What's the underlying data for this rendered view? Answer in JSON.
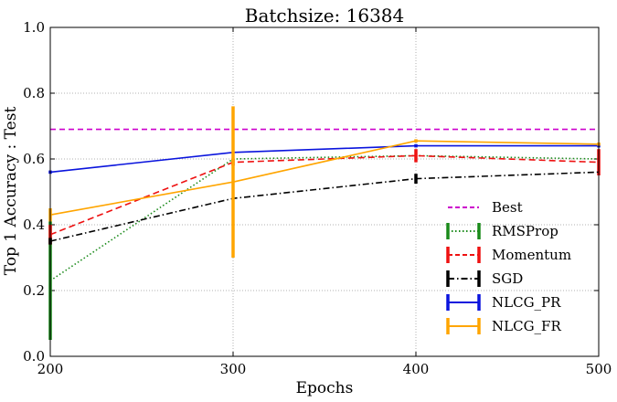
{
  "chart_data": {
    "type": "line",
    "title": "Batchsize: 16384",
    "xlabel": "Epochs",
    "ylabel": "Top 1 Accuracy : Test",
    "xlim": [
      200,
      500
    ],
    "ylim": [
      0.0,
      1.0
    ],
    "x_ticks": [
      "200",
      "300",
      "400",
      "500"
    ],
    "y_ticks": [
      "0.0",
      "0.2",
      "0.4",
      "0.6",
      "0.8",
      "1.0"
    ],
    "grid": true,
    "legend_position": "lower-right",
    "best": {
      "name": "Best",
      "value": 0.69,
      "color": "#cc00cc",
      "style": "dashed"
    },
    "series": [
      {
        "name": "RMSProp",
        "color": "#1a8a1a",
        "style": "dotted",
        "x": [
          200,
          300,
          400,
          500
        ],
        "y": [
          0.23,
          0.6,
          0.61,
          0.6
        ],
        "err": [
          0.18,
          0.0,
          0.0,
          0.0
        ]
      },
      {
        "name": "Momentum",
        "color": "#ee1111",
        "style": "dashed",
        "x": [
          200,
          300,
          400,
          500
        ],
        "y": [
          0.37,
          0.59,
          0.61,
          0.59
        ],
        "err": [
          0.03,
          0.01,
          0.02,
          0.04
        ]
      },
      {
        "name": "SGD",
        "color": "#000000",
        "style": "dashdot",
        "x": [
          200,
          300,
          400,
          500
        ],
        "y": [
          0.35,
          0.48,
          0.54,
          0.56
        ],
        "err": [
          0.01,
          0.0,
          0.015,
          0.0
        ]
      },
      {
        "name": "NLCG_PR",
        "color": "#0a14dd",
        "style": "solid",
        "x": [
          200,
          300,
          400,
          500
        ],
        "y": [
          0.56,
          0.62,
          0.64,
          0.64
        ],
        "err": [
          0.005,
          0.0,
          0.005,
          0.005
        ]
      },
      {
        "name": "NLCG_FR",
        "color": "#ffa500",
        "style": "solid",
        "x": [
          200,
          300,
          400,
          500
        ],
        "y": [
          0.43,
          0.53,
          0.655,
          0.645
        ],
        "err": [
          0.02,
          0.23,
          0.005,
          0.005
        ]
      }
    ]
  }
}
